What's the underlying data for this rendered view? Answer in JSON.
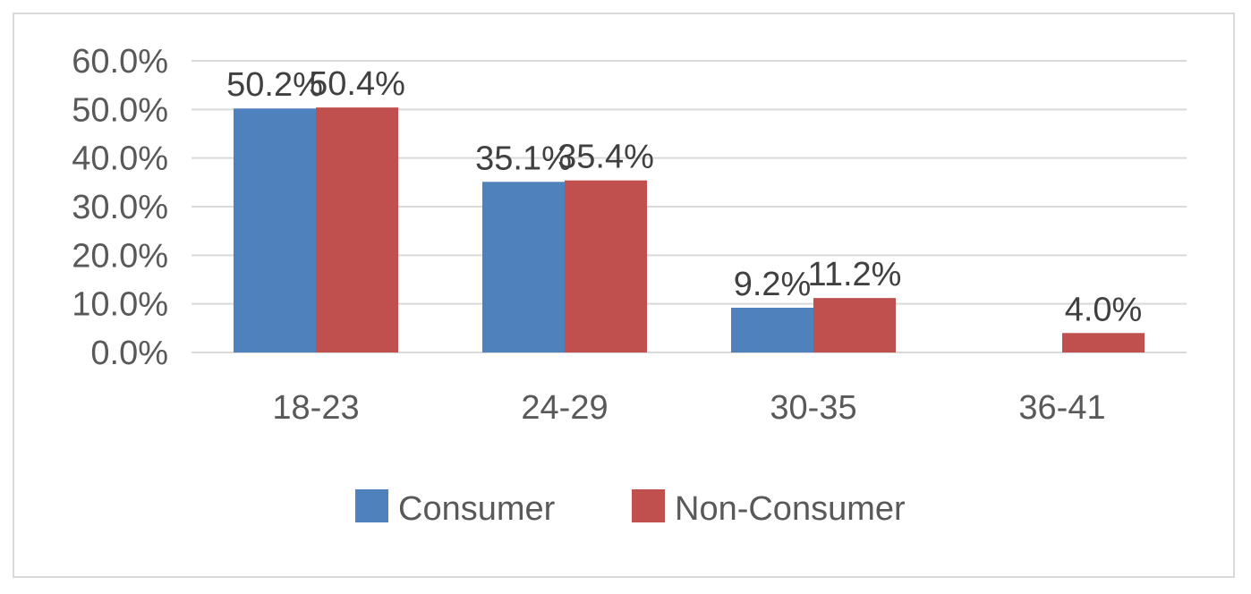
{
  "chart_data": {
    "type": "bar",
    "categories": [
      "18-23",
      "24-29",
      "30-35",
      "36-41"
    ],
    "series": [
      {
        "name": "Consumer",
        "color": "#4F81BD",
        "values": [
          50.2,
          35.1,
          9.2,
          0
        ],
        "labels": [
          "50.2%",
          "35.1%",
          "9.2%",
          ""
        ]
      },
      {
        "name": "Non-Consumer",
        "color": "#C0504D",
        "values": [
          50.4,
          35.4,
          11.2,
          4.0
        ],
        "labels": [
          "50.4%",
          "35.4%",
          "11.2%",
          "4.0%"
        ]
      }
    ],
    "yticks": [
      0,
      10,
      20,
      30,
      40,
      50,
      60
    ],
    "ytick_labels": [
      "0.0%",
      "10.0%",
      "20.0%",
      "30.0%",
      "40.0%",
      "50.0%",
      "60.0%"
    ],
    "ylim": [
      0,
      60
    ],
    "grid": true,
    "legend_position": "bottom",
    "title": "",
    "xlabel": "",
    "ylabel": ""
  }
}
